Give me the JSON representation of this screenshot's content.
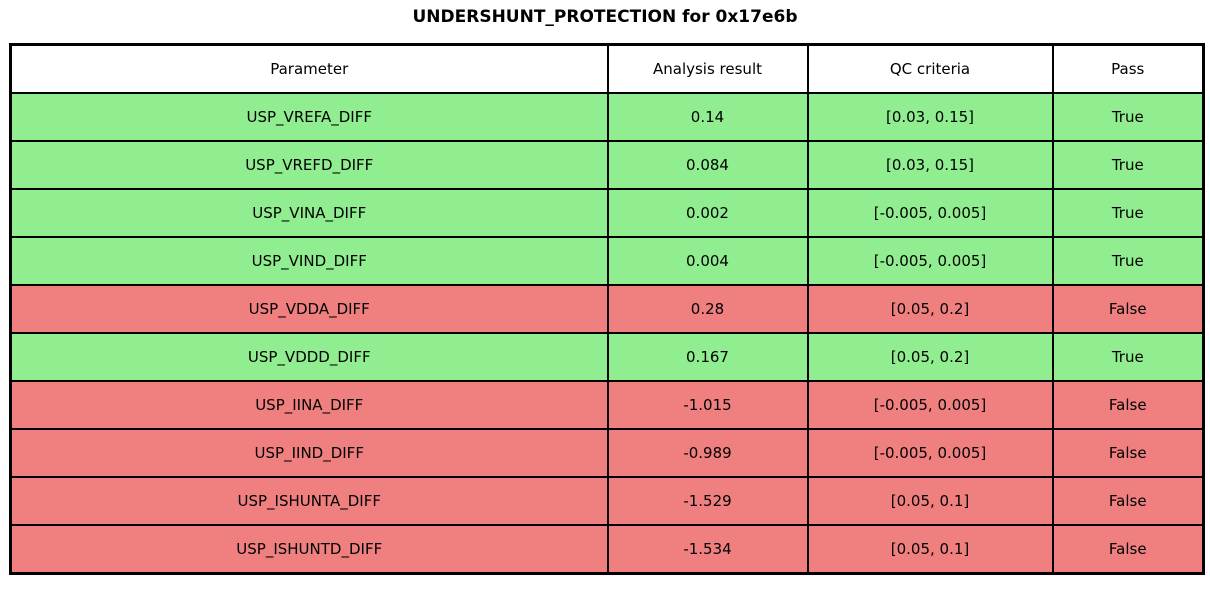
{
  "title": "UNDERSHUNT_PROTECTION for 0x17e6b",
  "colors": {
    "pass_row": "#90EE90",
    "fail_row": "#F08080",
    "header_bg": "#FFFFFF",
    "border": "#000000",
    "text": "#000000"
  },
  "chart_data": {
    "type": "table",
    "title": "UNDERSHUNT_PROTECTION for 0x17e6b",
    "columns": [
      "Parameter",
      "Analysis result",
      "QC criteria",
      "Pass"
    ],
    "rows": [
      {
        "parameter": "USP_VREFA_DIFF",
        "analysis_result": "0.14",
        "qc_criteria": "[0.03, 0.15]",
        "pass": "True",
        "status": "pass"
      },
      {
        "parameter": "USP_VREFD_DIFF",
        "analysis_result": "0.084",
        "qc_criteria": "[0.03, 0.15]",
        "pass": "True",
        "status": "pass"
      },
      {
        "parameter": "USP_VINA_DIFF",
        "analysis_result": "0.002",
        "qc_criteria": "[-0.005, 0.005]",
        "pass": "True",
        "status": "pass"
      },
      {
        "parameter": "USP_VIND_DIFF",
        "analysis_result": "0.004",
        "qc_criteria": "[-0.005, 0.005]",
        "pass": "True",
        "status": "pass"
      },
      {
        "parameter": "USP_VDDA_DIFF",
        "analysis_result": "0.28",
        "qc_criteria": "[0.05, 0.2]",
        "pass": "False",
        "status": "fail"
      },
      {
        "parameter": "USP_VDDD_DIFF",
        "analysis_result": "0.167",
        "qc_criteria": "[0.05, 0.2]",
        "pass": "True",
        "status": "pass"
      },
      {
        "parameter": "USP_IINA_DIFF",
        "analysis_result": "-1.015",
        "qc_criteria": "[-0.005, 0.005]",
        "pass": "False",
        "status": "fail"
      },
      {
        "parameter": "USP_IIND_DIFF",
        "analysis_result": "-0.989",
        "qc_criteria": "[-0.005, 0.005]",
        "pass": "False",
        "status": "fail"
      },
      {
        "parameter": "USP_ISHUNTA_DIFF",
        "analysis_result": "-1.529",
        "qc_criteria": "[0.05, 0.1]",
        "pass": "False",
        "status": "fail"
      },
      {
        "parameter": "USP_ISHUNTD_DIFF",
        "analysis_result": "-1.534",
        "qc_criteria": "[0.05, 0.1]",
        "pass": "False",
        "status": "fail"
      }
    ]
  }
}
